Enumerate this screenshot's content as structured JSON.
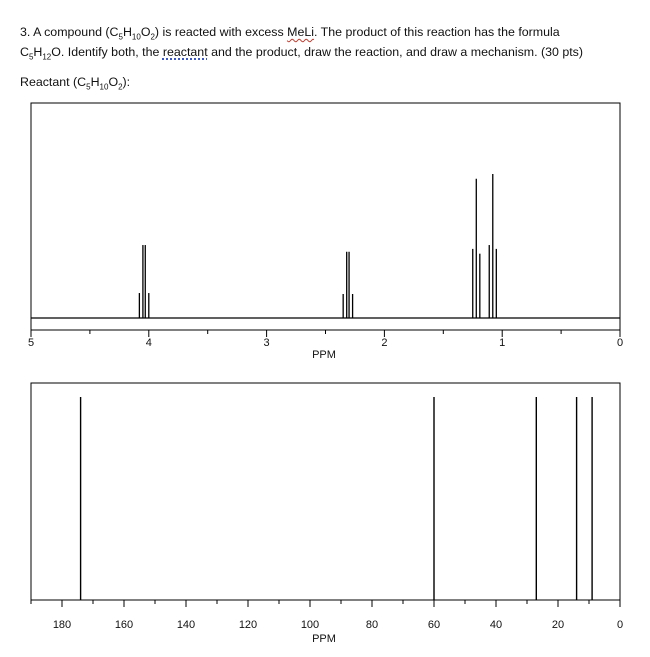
{
  "question": {
    "l1_a": "3. A compound (C",
    "l1_s1": "5",
    "l1_b": "H",
    "l1_s2": "10",
    "l1_c": "O",
    "l1_s3": "2",
    "l1_d": ") is reacted with excess ",
    "l1_meli": "MeLi",
    "l1_e": ".  The product of this reaction has the formula",
    "l2_a": "C",
    "l2_s1": "5",
    "l2_b": "H",
    "l2_s2": "12",
    "l2_c": "O.  Identify both, the ",
    "l2_reactant": "reactant",
    "l2_d": " and the product, draw the reaction, and draw a mechanism. (30 pts)",
    "r_a": "Reactant (C",
    "r_s1": "5",
    "r_b": "H",
    "r_s2": "10",
    "r_c": "O",
    "r_s3": "2",
    "r_d": "):"
  },
  "chart_data": [
    {
      "type": "line",
      "subtype": "1H NMR spectrum",
      "xlabel": "PPM",
      "xlim": [
        5,
        0
      ],
      "x_ticks": [
        "5",
        "4",
        "3",
        "2",
        "1",
        "0"
      ],
      "grid": false,
      "peaks": [
        {
          "group": "quartet",
          "lines": [
            {
              "ppm": 4.08,
              "intensity": 0.26
            },
            {
              "ppm": 4.05,
              "intensity": 0.76
            },
            {
              "ppm": 4.03,
              "intensity": 0.76
            },
            {
              "ppm": 4.0,
              "intensity": 0.26
            }
          ]
        },
        {
          "group": "quartet",
          "lines": [
            {
              "ppm": 2.35,
              "intensity": 0.25
            },
            {
              "ppm": 2.32,
              "intensity": 0.69
            },
            {
              "ppm": 2.3,
              "intensity": 0.69
            },
            {
              "ppm": 2.27,
              "intensity": 0.25
            }
          ]
        },
        {
          "group": "triplet",
          "lines": [
            {
              "ppm": 1.25,
              "intensity": 0.72
            },
            {
              "ppm": 1.22,
              "intensity": 1.45
            },
            {
              "ppm": 1.19,
              "intensity": 0.67
            }
          ]
        },
        {
          "group": "triplet",
          "lines": [
            {
              "ppm": 1.11,
              "intensity": 0.76
            },
            {
              "ppm": 1.08,
              "intensity": 1.5
            },
            {
              "ppm": 1.05,
              "intensity": 0.72
            }
          ]
        }
      ]
    },
    {
      "type": "bar",
      "subtype": "13C NMR spectrum",
      "xlabel": "PPM",
      "xlim": [
        190,
        0
      ],
      "x_ticks": [
        "180",
        "160",
        "140",
        "120",
        "100",
        "80",
        "60",
        "40",
        "20",
        "0"
      ],
      "grid": false,
      "peaks_ppm": [
        174,
        60,
        27,
        14,
        9
      ]
    }
  ]
}
